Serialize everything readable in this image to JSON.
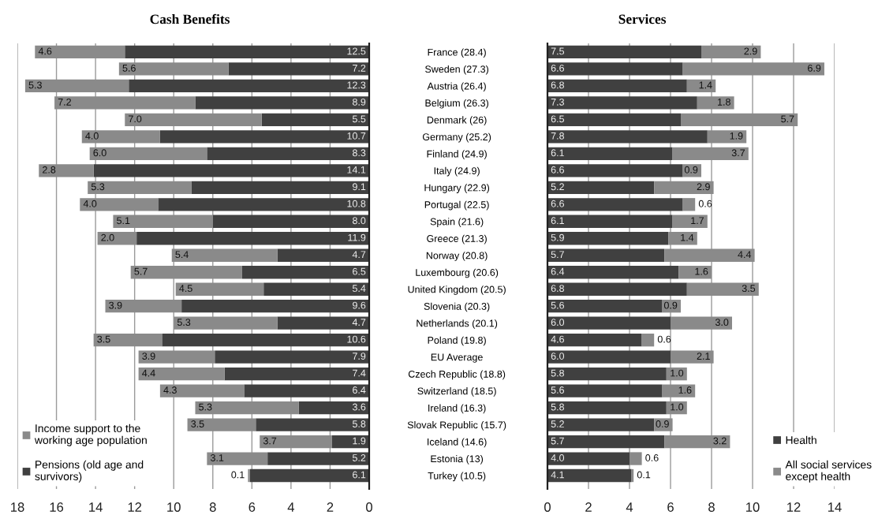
{
  "chart_data": [
    {
      "type": "bar",
      "orientation": "horizontal",
      "stacked": true,
      "title": "Cash Benefits",
      "categories": [
        "France (28.4)",
        "Sweden (27.3)",
        "Austria (26.4)",
        "Belgium (26.3)",
        "Denmark (26)",
        "Germany (25.2)",
        "Finland (24.9)",
        "Italy (24.9)",
        "Hungary (22.9)",
        "Portugal (22.5)",
        "Spain (21.6)",
        "Greece (21.3)",
        "Norway (20.8)",
        "Luxembourg (20.6)",
        "United Kingdom (20.5)",
        "Slovenia (20.3)",
        "Netherlands (20.1)",
        "Poland (19.8)",
        "EU Average",
        "Czech Republic (18.8)",
        "Switzerland (18.5)",
        "Ireland (16.3)",
        "Slovak Republic (15.7)",
        "Iceland (14.6)",
        "Estonia (13)",
        "Turkey (10.5)"
      ],
      "series": [
        {
          "name": "Pensions (old age and\nsurvivors)",
          "color": "#404040",
          "values": [
            12.5,
            7.2,
            12.3,
            8.9,
            5.5,
            10.7,
            8.3,
            14.1,
            9.1,
            10.8,
            8.0,
            11.9,
            4.7,
            6.5,
            5.4,
            9.6,
            4.7,
            10.6,
            7.9,
            7.4,
            6.4,
            3.6,
            5.8,
            1.9,
            5.2,
            6.1
          ],
          "value_labels": [
            "12.5",
            "7.2",
            "12.3",
            "8.9",
            "5.5",
            "10.7",
            "8.3",
            "14.1",
            "9.1",
            "10.8",
            "8.0",
            "11.9",
            "4.7",
            "6.5",
            "5.4",
            "9.6",
            "4.7",
            "10.6",
            "7.9",
            "7.4",
            "6.4",
            "3.6",
            "5.8",
            "1.9",
            "5.2",
            "6.1"
          ]
        },
        {
          "name": "Income support to the\nworking age population",
          "color": "#8a8a8a",
          "values": [
            4.6,
            5.6,
            5.3,
            7.2,
            7.0,
            4.0,
            6.0,
            2.8,
            5.3,
            4.0,
            5.1,
            2.0,
            5.4,
            5.7,
            4.5,
            3.9,
            5.3,
            3.5,
            3.9,
            4.4,
            4.3,
            5.3,
            3.5,
            3.7,
            3.1,
            0.1
          ],
          "value_labels": [
            "4.6",
            "5.6",
            "5.3",
            "7.2",
            "7.0",
            "4.0",
            "6.0",
            "2.8",
            "5.3",
            "4.0",
            "5.1",
            "2.0",
            "5.4",
            "5.7",
            "4.5",
            "3.9",
            "5.3",
            "3.5",
            "3.9",
            "4.4",
            "4.3",
            "5.3",
            "3.5",
            "3.7",
            "3.1",
            "0.1"
          ]
        }
      ],
      "xlim": [
        18,
        0
      ],
      "xticks": [
        18,
        16,
        14,
        12,
        10,
        8,
        6,
        4,
        2,
        0
      ],
      "grid": "x",
      "legend": "bottom left"
    },
    {
      "type": "bar",
      "orientation": "horizontal",
      "stacked": true,
      "title": "Services",
      "categories": [
        null,
        null,
        null,
        null,
        null,
        null,
        null,
        null,
        null,
        null,
        null,
        null,
        null,
        null,
        null,
        null,
        null,
        null,
        null,
        null,
        null,
        null,
        null,
        null,
        null,
        null
      ],
      "series": [
        {
          "name": "Health",
          "color": "#404040",
          "values": [
            7.5,
            6.6,
            6.8,
            7.3,
            6.5,
            7.8,
            6.1,
            6.6,
            5.2,
            6.6,
            6.1,
            5.9,
            5.7,
            6.4,
            6.8,
            5.6,
            6.0,
            4.6,
            6.0,
            5.8,
            5.6,
            5.8,
            5.2,
            5.7,
            4.0,
            4.1
          ],
          "value_labels": [
            "7.5",
            "6.6",
            "6.8",
            "7.3",
            "6.5",
            "7.8",
            "6.1",
            "6.6",
            "5.2",
            "6.6",
            "6.1",
            "5.9",
            "5.7",
            "6.4",
            "6.8",
            "5.6",
            "6.0",
            "4.6",
            "6.0",
            "5.8",
            "5.6",
            "5.8",
            "5.2",
            "5.7",
            "4.0",
            "4.1"
          ]
        },
        {
          "name": "All social services\nexcept health",
          "color": "#8a8a8a",
          "values": [
            2.9,
            6.9,
            1.4,
            1.8,
            5.7,
            1.9,
            3.7,
            0.9,
            2.9,
            0.6,
            1.7,
            1.4,
            4.4,
            1.6,
            3.5,
            0.9,
            3.0,
            0.6,
            2.1,
            1.0,
            1.6,
            1.0,
            0.9,
            3.2,
            0.6,
            0.1
          ],
          "value_labels": [
            "2.9",
            "6.9",
            "1.4",
            "1.8",
            "5.7",
            "1.9",
            "3.7",
            "0.9",
            "2.9",
            "0.6",
            "1.7",
            "1.4",
            "4.4",
            "1.6",
            "3.5",
            "0.9",
            "3.0",
            "0.6",
            "2.1",
            "1.0",
            "1.6",
            "1.0",
            "0.9",
            "3.2",
            "0.6",
            "0.1"
          ]
        }
      ],
      "xlim": [
        0,
        14
      ],
      "xticks": [
        0,
        2,
        4,
        6,
        8,
        10,
        12,
        14
      ],
      "grid": "x",
      "legend": "bottom right"
    }
  ]
}
